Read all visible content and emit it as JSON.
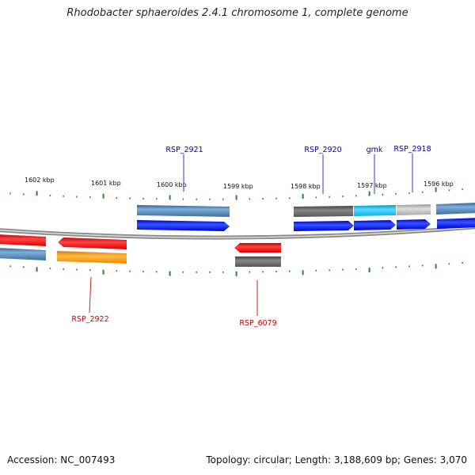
{
  "title": "Rhodobacter sphaeroides 2.4.1 chromosome 1, complete genome",
  "footer": {
    "accession": "Accession: NC_007493",
    "summary": "Topology: circular; Length: 3,188,609 bp; Genes: 3,070"
  },
  "colors": {
    "forward_cds": "#0000ee",
    "reverse_cds": "#ee0000",
    "steelblue_gene": "#4a7fb0",
    "gray_gene": "#666666",
    "light_gray_gene": "#bbbbbb",
    "cyan_gene": "#22bbee",
    "orange_gene": "#ff9900",
    "label_forward": "#0000aa",
    "label_reverse": "#cc0000",
    "ticks": "#228b22"
  },
  "scale_labels": [
    "1602 kbp",
    "1601 kbp",
    "1600 kbp",
    "1599 kbp",
    "1598 kbp",
    "1597 kbp",
    "1596 kbp"
  ],
  "gene_labels": {
    "forward": [
      "RSP_2921",
      "RSP_2920",
      "gmk",
      "RSP_2918"
    ],
    "reverse": [
      "RSP_2922",
      "RSP_6079"
    ]
  }
}
